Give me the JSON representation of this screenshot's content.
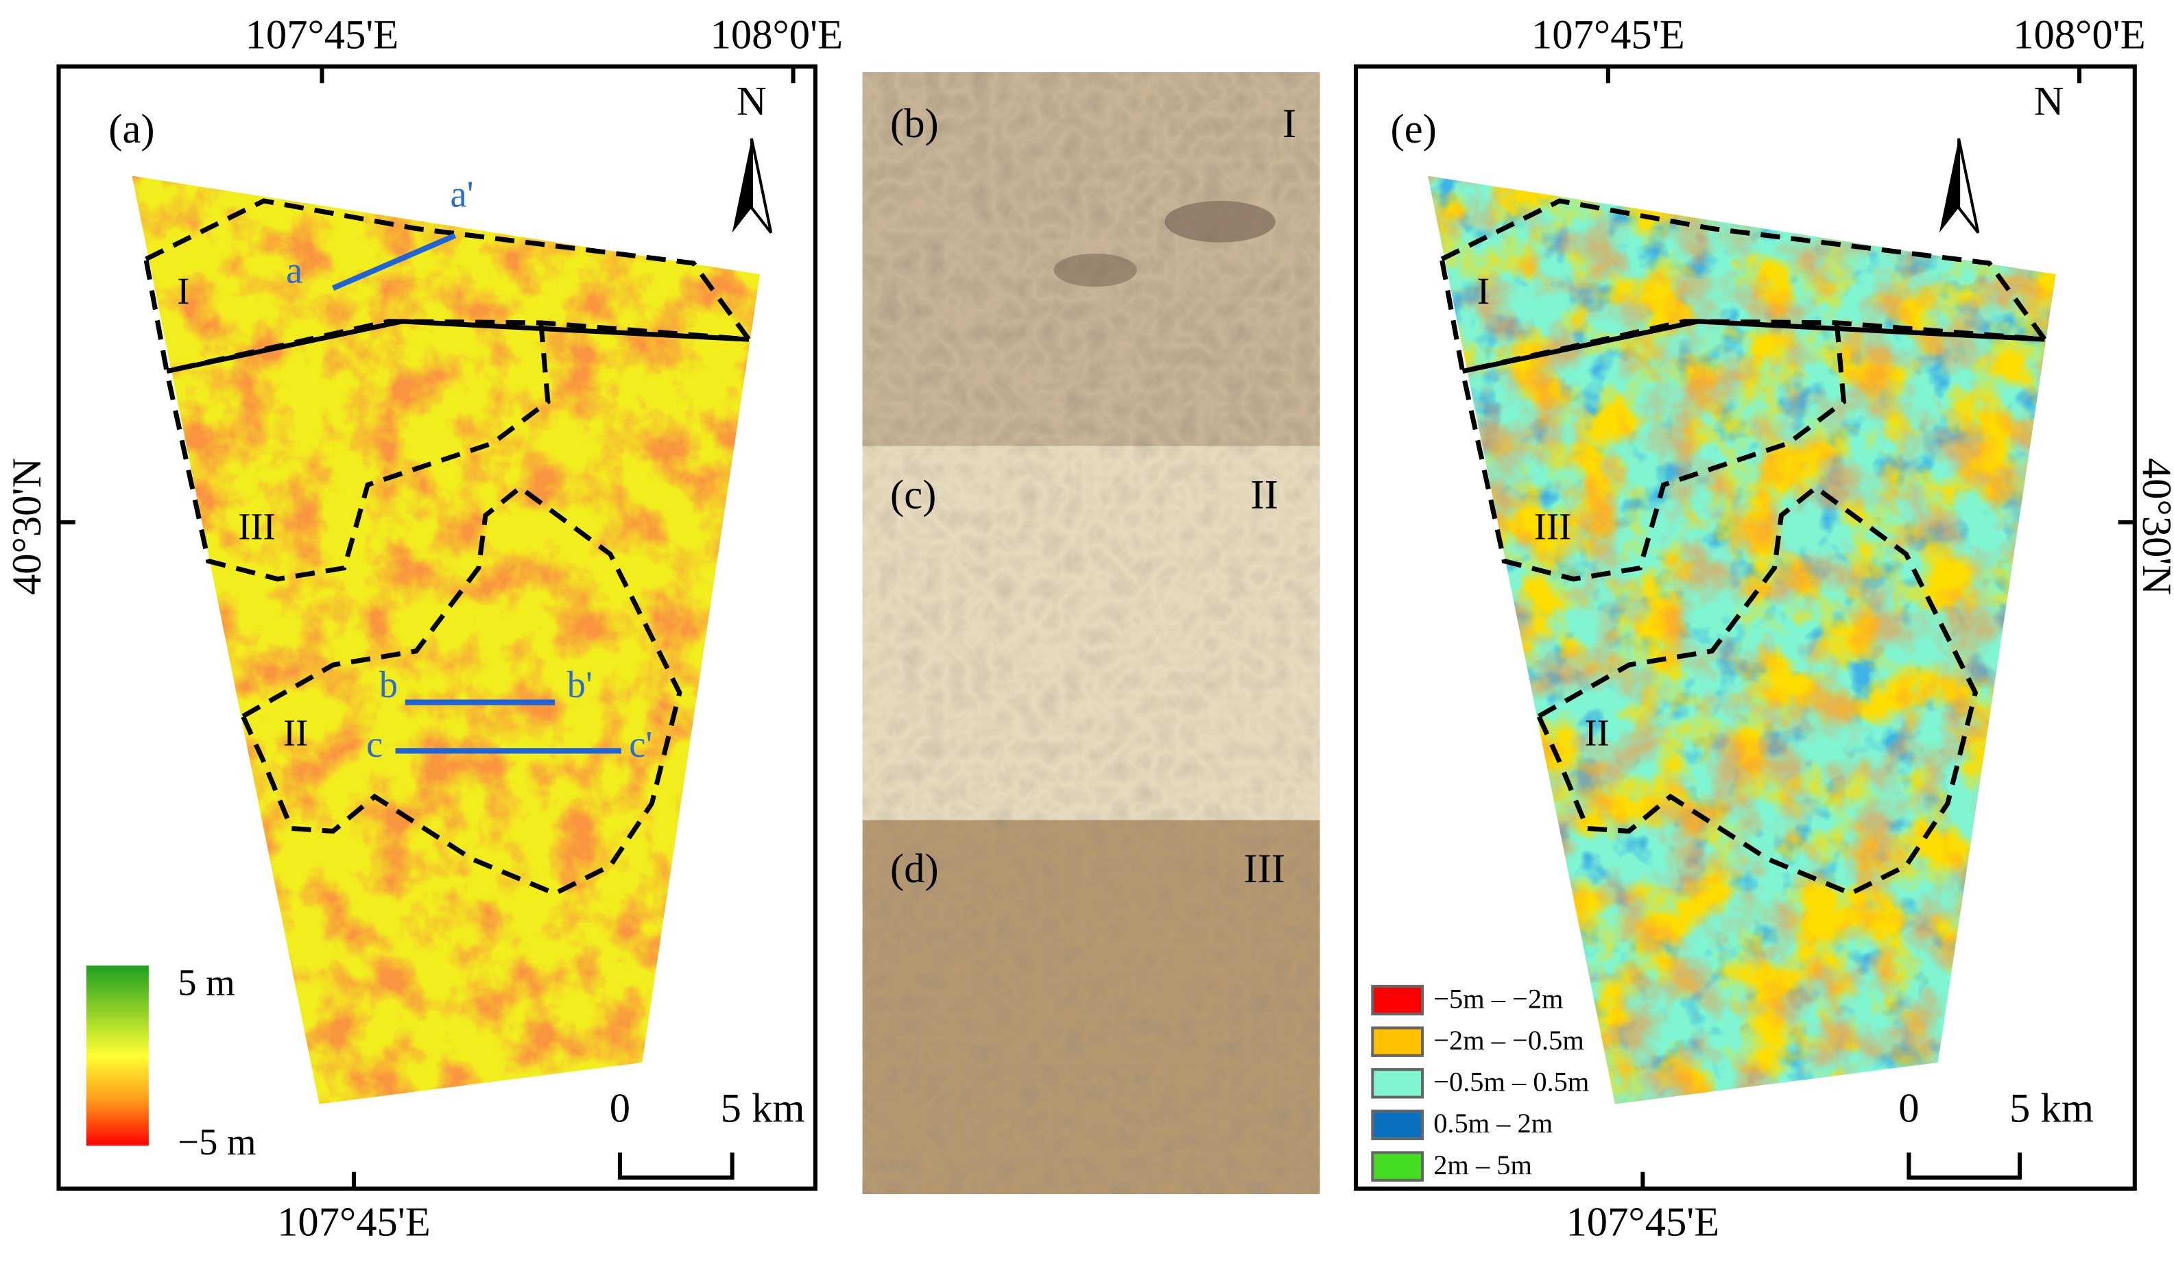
{
  "panel_a": {
    "label": "(a)",
    "top_labels": [
      "107°45'E",
      "108°0'E"
    ],
    "bottom_label": "107°45'E",
    "side_label": "40°30'N",
    "north": "N",
    "zones": [
      "I",
      "II",
      "III"
    ],
    "profiles": [
      "a",
      "a'",
      "b",
      "b'",
      "c",
      "c'"
    ],
    "colorbar": {
      "max": "5 m",
      "min": "−5 m"
    },
    "scale": {
      "start": "0",
      "end": "5 km"
    }
  },
  "photos": [
    {
      "label": "(b)",
      "zone": "I"
    },
    {
      "label": "(c)",
      "zone": "II"
    },
    {
      "label": "(d)",
      "zone": "III"
    }
  ],
  "panel_e": {
    "label": "(e)",
    "top_labels": [
      "107°45'E",
      "108°0'E"
    ],
    "bottom_label": "107°45'E",
    "side_label": "40°30'N",
    "north": "N",
    "zones": [
      "I",
      "II",
      "III"
    ],
    "legend": [
      {
        "label": "−5m – −2m",
        "color": "#ff0000"
      },
      {
        "label": "−2m – −0.5m",
        "color": "#ffc000"
      },
      {
        "label": "−0.5m – 0.5m",
        "color": "#7ff5d2"
      },
      {
        "label": "0.5m – 2m",
        "color": "#0a70c0"
      },
      {
        "label": "2m – 5m",
        "color": "#44dd22"
      }
    ],
    "scale": {
      "start": "0",
      "end": "5 km"
    }
  }
}
